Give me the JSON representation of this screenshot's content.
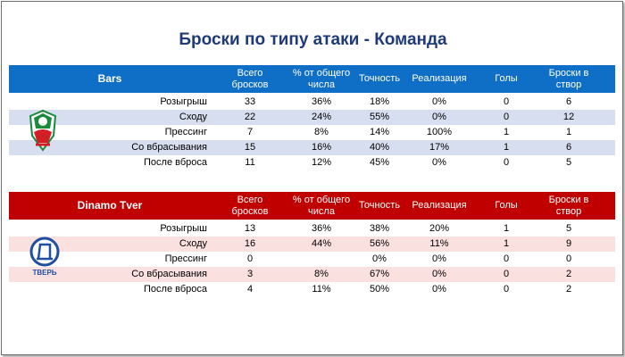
{
  "title": "Броски по типу атаки - Команда",
  "columns": [
    "Всего бросков",
    "% от общего числа",
    "Точность",
    "Реализация",
    "Голы",
    "Броски в створ"
  ],
  "teams": [
    {
      "name": "Bars",
      "header_color": "#0f6fc6",
      "stripe_color": "#d7deef",
      "logo_icon": "bars-logo-icon",
      "rows": [
        {
          "label": "Розыгрыш",
          "values": [
            "33",
            "36%",
            "18%",
            "0%",
            "0",
            "6"
          ]
        },
        {
          "label": "Сходу",
          "values": [
            "22",
            "24%",
            "55%",
            "0%",
            "0",
            "12"
          ]
        },
        {
          "label": "Прессинг",
          "values": [
            "7",
            "8%",
            "14%",
            "100%",
            "1",
            "1"
          ]
        },
        {
          "label": "Со вбрасывания",
          "values": [
            "15",
            "16%",
            "40%",
            "17%",
            "1",
            "6"
          ]
        },
        {
          "label": "После вброса",
          "values": [
            "11",
            "12%",
            "45%",
            "0%",
            "0",
            "5"
          ]
        }
      ]
    },
    {
      "name": "Dinamo Tver",
      "header_color": "#c00000",
      "stripe_color": "#fbe0e0",
      "logo_icon": "dinamo-logo-icon",
      "logo_text": "ТВЕРЬ",
      "rows": [
        {
          "label": "Розыгрыш",
          "values": [
            "13",
            "36%",
            "38%",
            "20%",
            "1",
            "5"
          ]
        },
        {
          "label": "Сходу",
          "values": [
            "16",
            "44%",
            "56%",
            "11%",
            "1",
            "9"
          ]
        },
        {
          "label": "Прессинг",
          "values": [
            "0",
            "",
            "0%",
            "0%",
            "0",
            "0"
          ]
        },
        {
          "label": "Со вбрасывания",
          "values": [
            "3",
            "8%",
            "67%",
            "0%",
            "0",
            "2"
          ]
        },
        {
          "label": "После вброса",
          "values": [
            "4",
            "11%",
            "50%",
            "0%",
            "0",
            "2"
          ]
        }
      ]
    }
  ]
}
